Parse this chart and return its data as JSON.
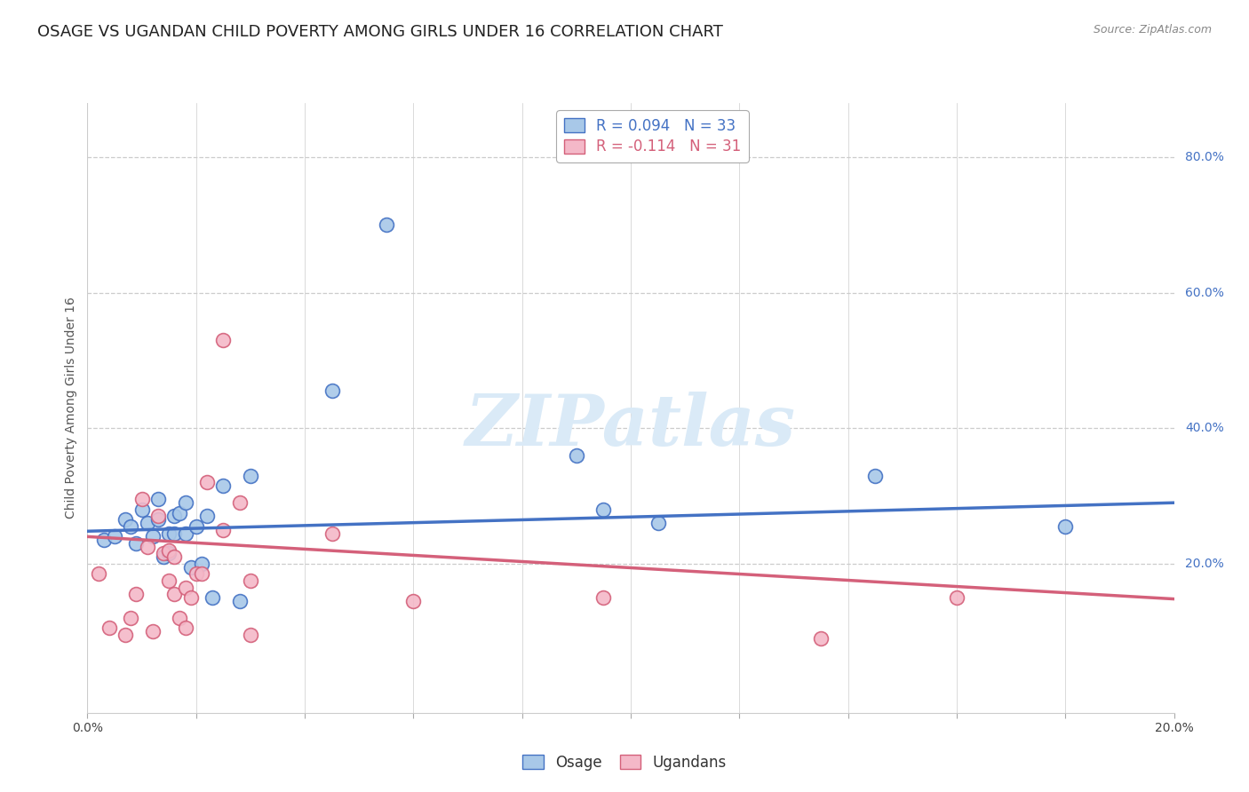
{
  "title": "OSAGE VS UGANDAN CHILD POVERTY AMONG GIRLS UNDER 16 CORRELATION CHART",
  "source": "Source: ZipAtlas.com",
  "ylabel": "Child Poverty Among Girls Under 16",
  "right_yticks": [
    "80.0%",
    "60.0%",
    "40.0%",
    "20.0%"
  ],
  "right_ytick_vals": [
    0.8,
    0.6,
    0.4,
    0.2
  ],
  "xlim": [
    0.0,
    0.2
  ],
  "ylim": [
    -0.02,
    0.88
  ],
  "osage_color": "#a8c8e8",
  "osage_color_dark": "#4472c4",
  "ugandan_color": "#f4b8c8",
  "ugandan_color_dark": "#d4607a",
  "watermark_color": "#daeaf7",
  "legend_r_osage": "R = 0.094",
  "legend_n_osage": "N = 33",
  "legend_r_ugandan": "R = -0.114",
  "legend_n_ugandan": "N = 31",
  "osage_x": [
    0.003,
    0.005,
    0.007,
    0.008,
    0.009,
    0.01,
    0.011,
    0.012,
    0.013,
    0.013,
    0.014,
    0.015,
    0.015,
    0.016,
    0.016,
    0.017,
    0.018,
    0.018,
    0.019,
    0.02,
    0.021,
    0.022,
    0.023,
    0.025,
    0.028,
    0.03,
    0.045,
    0.055,
    0.09,
    0.095,
    0.105,
    0.145,
    0.18
  ],
  "osage_y": [
    0.235,
    0.24,
    0.265,
    0.255,
    0.23,
    0.28,
    0.26,
    0.24,
    0.265,
    0.295,
    0.21,
    0.245,
    0.215,
    0.27,
    0.245,
    0.275,
    0.245,
    0.29,
    0.195,
    0.255,
    0.2,
    0.27,
    0.15,
    0.315,
    0.145,
    0.33,
    0.455,
    0.7,
    0.36,
    0.28,
    0.26,
    0.33,
    0.255
  ],
  "ugandan_x": [
    0.002,
    0.004,
    0.007,
    0.008,
    0.009,
    0.01,
    0.011,
    0.012,
    0.013,
    0.014,
    0.015,
    0.015,
    0.016,
    0.016,
    0.017,
    0.018,
    0.018,
    0.019,
    0.02,
    0.021,
    0.022,
    0.025,
    0.025,
    0.028,
    0.03,
    0.03,
    0.045,
    0.06,
    0.095,
    0.135,
    0.16
  ],
  "ugandan_y": [
    0.185,
    0.105,
    0.095,
    0.12,
    0.155,
    0.295,
    0.225,
    0.1,
    0.27,
    0.215,
    0.22,
    0.175,
    0.21,
    0.155,
    0.12,
    0.105,
    0.165,
    0.15,
    0.185,
    0.185,
    0.32,
    0.25,
    0.53,
    0.29,
    0.175,
    0.095,
    0.245,
    0.145,
    0.15,
    0.09,
    0.15
  ],
  "osage_trend_x": [
    0.0,
    0.2
  ],
  "osage_trend_y": [
    0.248,
    0.29
  ],
  "ugandan_trend_x": [
    0.0,
    0.2
  ],
  "ugandan_trend_y": [
    0.24,
    0.148
  ],
  "background_color": "#ffffff",
  "grid_color": "#cccccc",
  "marker_size": 130,
  "title_fontsize": 13,
  "axis_fontsize": 10,
  "legend_fontsize": 12
}
